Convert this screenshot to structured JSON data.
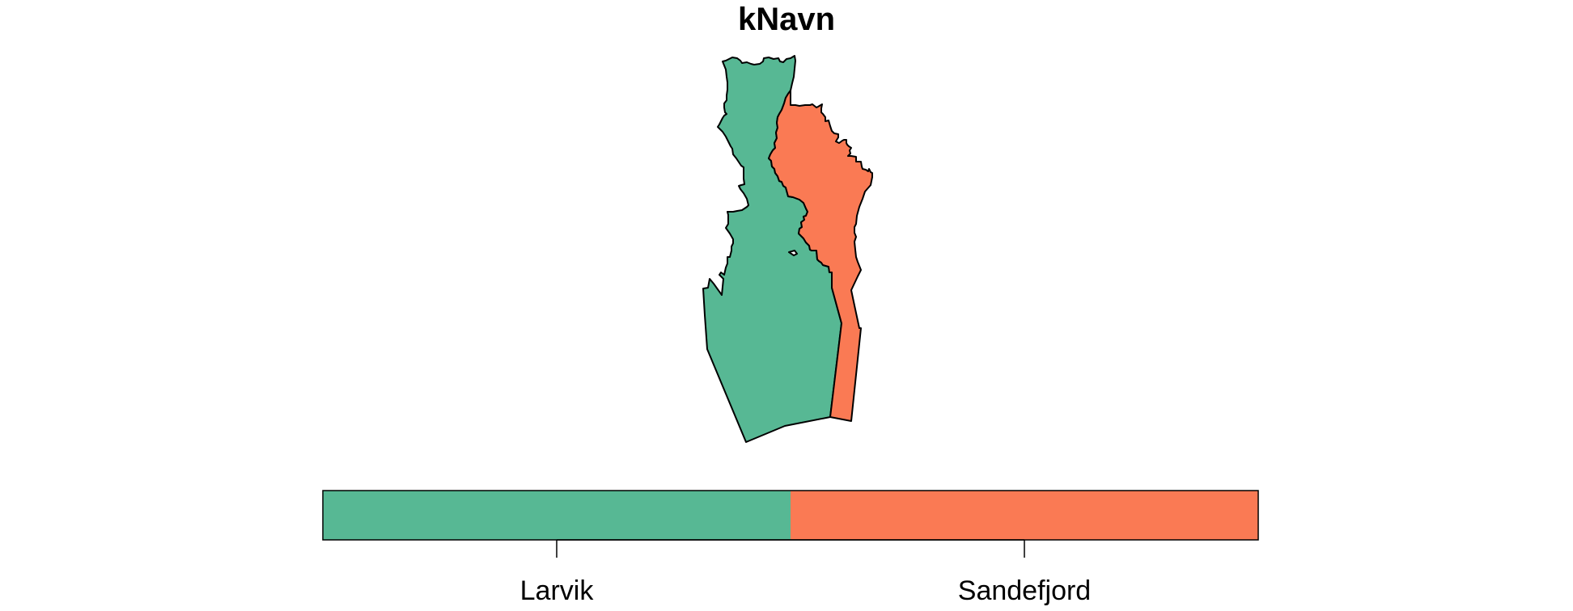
{
  "title": "kNavn",
  "regions": [
    {
      "name": "Larvik",
      "color": "#57b894"
    },
    {
      "name": "Sandefjord",
      "color": "#fa7a54"
    }
  ],
  "legend": {
    "labels": [
      "Larvik",
      "Sandefjord"
    ],
    "colors": [
      "#57b894",
      "#fa7a54"
    ]
  }
}
